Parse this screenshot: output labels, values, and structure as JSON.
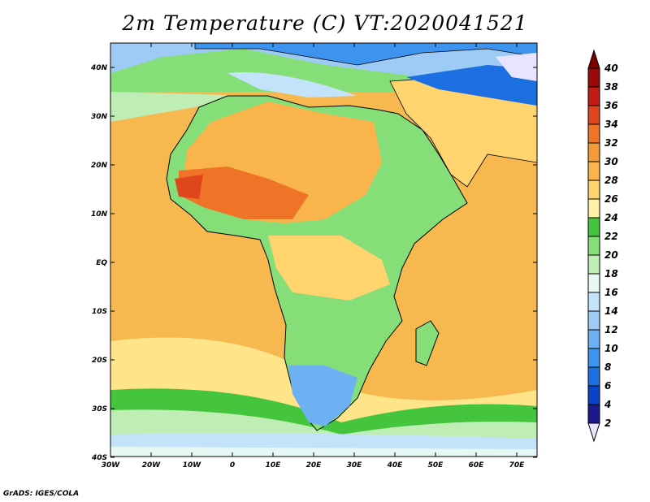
{
  "title": "2m Temperature (C) VT:2020041521",
  "footer": "GrADS: IGES/COLA",
  "map": {
    "lon_ticks": [
      "30W",
      "20W",
      "10W",
      "0",
      "10E",
      "20E",
      "30E",
      "40E",
      "50E",
      "60E",
      "70E"
    ],
    "lat_ticks": [
      "40N",
      "30N",
      "20N",
      "10N",
      "EQ",
      "10S",
      "20S",
      "30S",
      "40S"
    ],
    "lon_range": [
      -30,
      75
    ],
    "lat_range": [
      -40,
      45
    ]
  },
  "colorbar": {
    "labels": [
      "2",
      "4",
      "6",
      "8",
      "10",
      "12",
      "14",
      "16",
      "18",
      "20",
      "22",
      "24",
      "26",
      "28",
      "30",
      "32",
      "34",
      "36",
      "38",
      "40"
    ],
    "colors": [
      "#e8e4ff",
      "#1a1a8c",
      "#0a42c8",
      "#1b6fe0",
      "#3d93ee",
      "#6eb1f2",
      "#9ecbf6",
      "#c3e3fa",
      "#e6f8f4",
      "#bfeeb4",
      "#86de78",
      "#44c53d",
      "#fff0a8",
      "#ffd36e",
      "#f9b44c",
      "#f49a38",
      "#ef7428",
      "#e0461c",
      "#c31c14",
      "#9a0808",
      "#7a0000"
    ]
  }
}
